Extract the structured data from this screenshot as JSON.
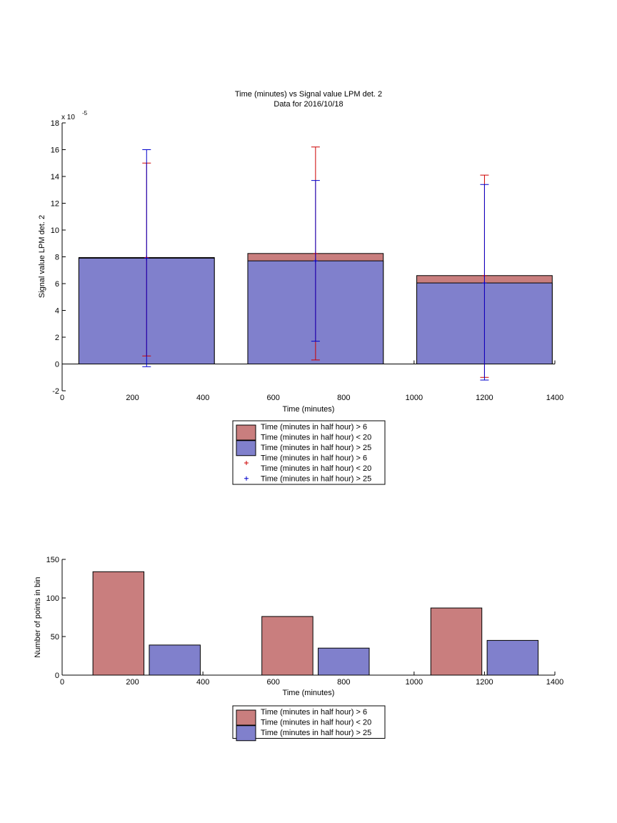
{
  "chart_data": [
    {
      "type": "bar",
      "title": "Time (minutes) vs Signal value LPM det. 2",
      "subtitle": "Data for 2016/10/18",
      "xlabel": "Time (minutes)",
      "ylabel": "Signal value LPM det. 2",
      "y_exponent_label": "x 10",
      "y_exponent_power": "-5",
      "xlim": [
        0,
        1400
      ],
      "ylim": [
        -2,
        18
      ],
      "xticks": [
        0,
        200,
        400,
        600,
        800,
        1000,
        1200,
        1400
      ],
      "yticks": [
        -2,
        0,
        2,
        4,
        6,
        8,
        10,
        12,
        14,
        16,
        18
      ],
      "grid": false,
      "legend_placement": "below",
      "categories": [
        240,
        720,
        1200
      ],
      "bar_width": 385,
      "series": [
        {
          "name": "Time (minutes in half hour) > 6\nTime (minutes in half hour) < 20",
          "color": "#c97e7e",
          "values": [
            7.95,
            8.25,
            6.6
          ],
          "error_low": [
            0.6,
            0.3,
            -1.0
          ],
          "error_high": [
            15.0,
            16.2,
            14.1
          ]
        },
        {
          "name": "Time (minutes in half hour) > 25",
          "color": "#8080cc",
          "values": [
            7.9,
            7.7,
            6.05
          ],
          "error_low": [
            -0.2,
            1.7,
            -1.2
          ],
          "error_high": [
            16.0,
            13.7,
            13.4
          ]
        }
      ],
      "legend": [
        {
          "kind": "patch",
          "color": "#c97e7e",
          "lines": [
            "Time (minutes in half hour) > 6",
            "Time (minutes in half hour) < 20"
          ]
        },
        {
          "kind": "patch",
          "color": "#8080cc",
          "lines": [
            "Time (minutes in half hour) > 25"
          ]
        },
        {
          "kind": "marker",
          "color": "#cc0000",
          "lines": [
            "Time (minutes in half hour) > 6",
            "Time (minutes in half hour) < 20"
          ]
        },
        {
          "kind": "marker",
          "color": "#0000cc",
          "lines": [
            "Time (minutes in half hour) > 25"
          ]
        }
      ]
    },
    {
      "type": "bar",
      "xlabel": "Time (minutes)",
      "ylabel": "Number of points in bin",
      "xlim": [
        0,
        1400
      ],
      "ylim": [
        0,
        150
      ],
      "xticks": [
        0,
        200,
        400,
        600,
        800,
        1000,
        1200,
        1400
      ],
      "yticks": [
        0,
        50,
        100,
        150
      ],
      "grid": false,
      "legend_placement": "below",
      "bar_width": 145,
      "series": [
        {
          "name": "Time (minutes in half hour) > 6\nTime (minutes in half hour) < 20",
          "color": "#c97e7e",
          "x": [
            160,
            640,
            1120
          ],
          "values": [
            134,
            76,
            87
          ]
        },
        {
          "name": "Time (minutes in half hour) > 25",
          "color": "#8080cc",
          "x": [
            320,
            800,
            1280
          ],
          "values": [
            39,
            35,
            45
          ]
        }
      ],
      "legend": [
        {
          "kind": "patch",
          "color": "#c97e7e",
          "lines": [
            "Time (minutes in half hour) > 6",
            "Time (minutes in half hour) < 20"
          ]
        },
        {
          "kind": "patch",
          "color": "#8080cc",
          "lines": [
            "Time (minutes in half hour) > 25"
          ]
        }
      ]
    }
  ]
}
